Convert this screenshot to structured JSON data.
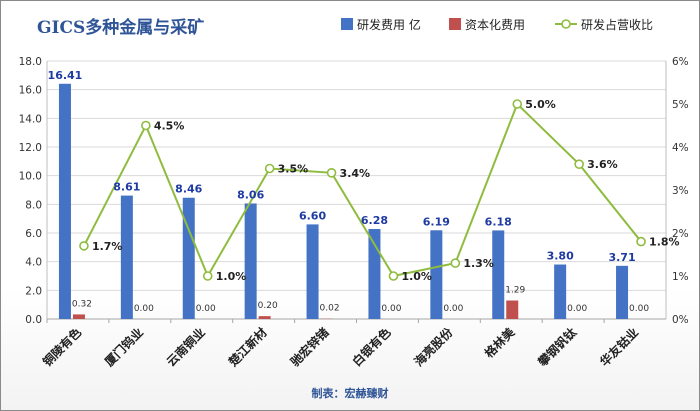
{
  "chart_data": {
    "type": "bar",
    "title": "GICS多种金属与采矿",
    "categories": [
      "铜陵有色",
      "厦门钨业",
      "云南铜业",
      "楚江新材",
      "驰宏锌锗",
      "白银有色",
      "海亮股份",
      "格林美",
      "攀钢钒钛",
      "华友钴业"
    ],
    "series": [
      {
        "name": "研发费用 亿",
        "type": "bar",
        "axis": "left",
        "color": "#4472c4",
        "values": [
          16.41,
          8.61,
          8.46,
          8.06,
          6.6,
          6.28,
          6.19,
          6.18,
          3.8,
          3.71
        ],
        "labels": [
          "16.41",
          "8.61",
          "8.46",
          "8.06",
          "6.60",
          "6.28",
          "6.19",
          "6.18",
          "3.80",
          "3.71"
        ]
      },
      {
        "name": "资本化费用",
        "type": "bar",
        "axis": "left",
        "color": "#c0504d",
        "values": [
          0.32,
          0.0,
          0.0,
          0.2,
          0.02,
          0.0,
          0.0,
          1.29,
          0.0,
          0.0
        ],
        "labels": [
          "0.32",
          "0.00",
          "0.00",
          "0.20",
          "0.02",
          "0.00",
          "0.00",
          "1.29",
          "0.00",
          "0.00"
        ]
      },
      {
        "name": "研发占营收比",
        "type": "line",
        "axis": "right",
        "color": "#8fbc3f",
        "values": [
          1.7,
          4.5,
          1.0,
          3.5,
          3.4,
          1.0,
          1.3,
          5.0,
          3.6,
          1.8
        ],
        "labels": [
          "1.7%",
          "4.5%",
          "1.0%",
          "3.5%",
          "3.4%",
          "1.0%",
          "1.3%",
          "5.0%",
          "3.6%",
          "1.8%"
        ]
      }
    ],
    "left_axis": {
      "ylim": [
        0,
        18
      ],
      "ticks": [
        "0.0",
        "2.0",
        "4.0",
        "6.0",
        "8.0",
        "10.0",
        "12.0",
        "14.0",
        "16.0",
        "18.0"
      ]
    },
    "right_axis": {
      "ylim": [
        0,
        6
      ],
      "ticks": [
        "0%",
        "1%",
        "2%",
        "3%",
        "4%",
        "5%",
        "6%"
      ]
    },
    "grid": true,
    "legend": "top-right"
  },
  "footer": "制表：宏赫臻财"
}
